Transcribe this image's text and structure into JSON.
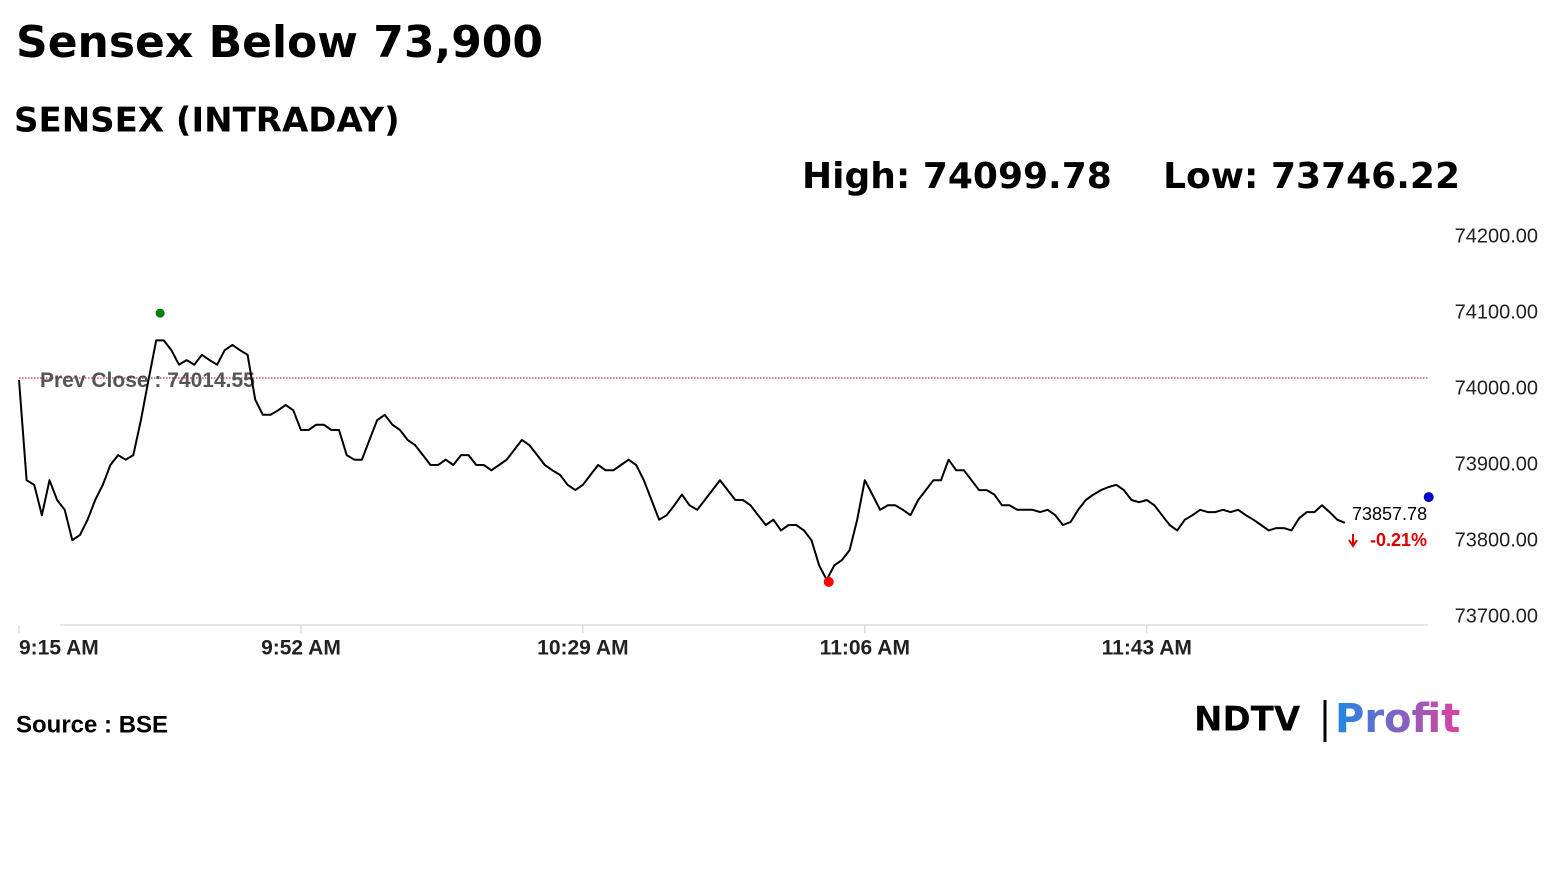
{
  "chart_data": {
    "type": "line",
    "title": "Sensex Below 73,900",
    "subtitle": "SENSEX (INTRADAY)",
    "high_label": "High:",
    "high": 74099.78,
    "low_label": "Low:",
    "low": 73746.22,
    "prev_close_label": "Prev Close :",
    "prev_close": 74014.55,
    "last": 73857.78,
    "change": -0.21,
    "change_label": "-0.21%",
    "source": "Source : BSE",
    "logo": {
      "brand": "NDTV",
      "product": "Profit"
    },
    "categories": [
      "9:15 AM",
      "9:16 AM",
      "9:17 AM",
      "9:18 AM",
      "9:19 AM",
      "9:20 AM",
      "9:21 AM",
      "9:22 AM",
      "9:23 AM",
      "9:24 AM",
      "9:25 AM",
      "9:26 AM",
      "9:27 AM",
      "9:28 AM",
      "9:29 AM",
      "9:30 AM",
      "9:31 AM",
      "9:32 AM",
      "9:33 AM",
      "9:34 AM",
      "9:35 AM",
      "9:36 AM",
      "9:37 AM",
      "9:38 AM",
      "9:39 AM",
      "9:40 AM",
      "9:41 AM",
      "9:42 AM",
      "9:43 AM",
      "9:44 AM",
      "9:45 AM",
      "9:46 AM",
      "9:47 AM",
      "9:48 AM",
      "9:49 AM",
      "9:50 AM",
      "9:51 AM",
      "9:52 AM",
      "9:53 AM",
      "9:54 AM",
      "9:55 AM",
      "9:56 AM",
      "9:57 AM",
      "9:58 AM",
      "9:59 AM",
      "10:00 AM",
      "10:01 AM",
      "10:02 AM",
      "10:03 AM",
      "10:04 AM",
      "10:05 AM",
      "10:06 AM",
      "10:07 AM",
      "10:08 AM",
      "10:09 AM",
      "10:10 AM",
      "10:11 AM",
      "10:12 AM",
      "10:13 AM",
      "10:14 AM",
      "10:15 AM",
      "10:16 AM",
      "10:17 AM",
      "10:18 AM",
      "10:19 AM",
      "10:20 AM",
      "10:21 AM",
      "10:22 AM",
      "10:23 AM",
      "10:24 AM",
      "10:25 AM",
      "10:26 AM",
      "10:27 AM",
      "10:28 AM",
      "10:29 AM",
      "10:30 AM",
      "10:31 AM",
      "10:32 AM",
      "10:33 AM",
      "10:34 AM",
      "10:35 AM",
      "10:36 AM",
      "10:37 AM",
      "10:38 AM",
      "10:39 AM",
      "10:40 AM",
      "10:41 AM",
      "10:42 AM",
      "10:43 AM",
      "10:44 AM",
      "10:45 AM",
      "10:46 AM",
      "10:47 AM",
      "10:48 AM",
      "10:49 AM",
      "10:50 AM",
      "10:51 AM",
      "10:52 AM",
      "10:53 AM",
      "10:54 AM",
      "10:55 AM",
      "10:56 AM",
      "10:57 AM",
      "10:58 AM",
      "10:59 AM",
      "11:00 AM",
      "11:01 AM",
      "11:02 AM",
      "11:03 AM",
      "11:04 AM",
      "11:05 AM",
      "11:06 AM",
      "11:07 AM",
      "11:08 AM",
      "11:09 AM",
      "11:10 AM",
      "11:11 AM",
      "11:12 AM",
      "11:13 AM",
      "11:14 AM",
      "11:15 AM",
      "11:16 AM",
      "11:17 AM",
      "11:18 AM",
      "11:19 AM",
      "11:20 AM",
      "11:21 AM",
      "11:22 AM",
      "11:23 AM",
      "11:24 AM",
      "11:25 AM",
      "11:26 AM",
      "11:27 AM",
      "11:28 AM",
      "11:29 AM",
      "11:30 AM",
      "11:31 AM",
      "11:32 AM",
      "11:33 AM",
      "11:34 AM",
      "11:35 AM",
      "11:36 AM",
      "11:37 AM",
      "11:38 AM",
      "11:39 AM",
      "11:40 AM",
      "11:41 AM",
      "11:42 AM",
      "11:43 AM",
      "11:44 AM",
      "11:45 AM",
      "11:46 AM",
      "11:47 AM",
      "11:48 AM",
      "11:49 AM",
      "11:50 AM",
      "11:51 AM",
      "11:52 AM",
      "11:53 AM",
      "11:54 AM",
      "11:55 AM",
      "11:56 AM",
      "11:57 AM",
      "11:58 AM",
      "11:59 AM",
      "12:00 PM",
      "12:01 PM",
      "12:02 PM",
      "12:03 PM",
      "12:04 PM",
      "12:05 PM",
      "12:06 PM",
      "12:07 PM",
      "12:08 PM",
      "12:09 PM",
      "12:10 PM",
      "12:11 PM",
      "12:12 PM",
      "12:13 PM",
      "12:14 PM",
      "12:15 PM",
      "12:16 PM",
      "12:17 PM",
      "12:18 PM",
      "12:19 PM",
      "12:20 PM"
    ],
    "xticks": [
      "9:15 AM",
      "9:52 AM",
      "10:29 AM",
      "11:06 AM",
      "11:43 AM"
    ],
    "series": [
      {
        "name": "SENSEX",
        "color": "#000000",
        "values": [
          74012,
          73880,
          73874,
          73834,
          73880,
          73854,
          73841,
          73801,
          73808,
          73828,
          73854,
          73874,
          73900,
          73913,
          73907,
          73913,
          73959,
          74012,
          74064,
          74064,
          74051,
          74032,
          74038,
          74032,
          74045,
          74038,
          74032,
          74051,
          74058,
          74051,
          74045,
          73986,
          73966,
          73966,
          73972,
          73979,
          73972,
          73946,
          73946,
          73953,
          73953,
          73946,
          73946,
          73913,
          73907,
          73907,
          73933,
          73959,
          73966,
          73953,
          73946,
          73933,
          73926,
          73913,
          73900,
          73900,
          73907,
          73900,
          73913,
          73913,
          73900,
          73900,
          73893,
          73900,
          73907,
          73920,
          73933,
          73926,
          73913,
          73900,
          73893,
          73887,
          73874,
          73867,
          73874,
          73887,
          73900,
          73893,
          73893,
          73900,
          73907,
          73900,
          73880,
          73854,
          73828,
          73834,
          73847,
          73861,
          73847,
          73841,
          73854,
          73867,
          73880,
          73867,
          73854,
          73854,
          73847,
          73834,
          73821,
          73828,
          73814,
          73821,
          73821,
          73814,
          73801,
          73768,
          73749,
          73768,
          73775,
          73788,
          73828,
          73880,
          73861,
          73841,
          73847,
          73847,
          73841,
          73834,
          73854,
          73867,
          73880,
          73880,
          73907,
          73893,
          73893,
          73880,
          73867,
          73867,
          73861,
          73847,
          73847,
          73841,
          73841,
          73841,
          73838,
          73841,
          73834,
          73821,
          73825,
          73841,
          73854,
          73861,
          73867,
          73871,
          73874,
          73867,
          73854,
          73851,
          73854,
          73847,
          73834,
          73821,
          73814,
          73828,
          73834,
          73841,
          73838,
          73838,
          73841,
          73838,
          73841,
          73834,
          73828,
          73821,
          73814,
          73817,
          73817,
          73814,
          73830,
          73838,
          73838,
          73847,
          73838,
          73828,
          73824,
          null,
          null,
          null,
          null,
          null,
          null,
          null,
          null,
          null,
          null,
          null
        ]
      }
    ],
    "high_color": "#008000",
    "low_color": "#ff0000",
    "last_color": "#0000cc",
    "prev_close_color": "#cc0000",
    "ylim": [
      73690,
      74200
    ],
    "yticks": [
      {
        "value": 73700,
        "label": "73700.00"
      },
      {
        "value": 73800,
        "label": "73800.00"
      },
      {
        "value": 73900,
        "label": "73900.00"
      },
      {
        "value": 74000,
        "label": "74000.00"
      },
      {
        "value": 74100,
        "label": "74100.00"
      },
      {
        "value": 74200,
        "label": "74200.00"
      }
    ]
  }
}
